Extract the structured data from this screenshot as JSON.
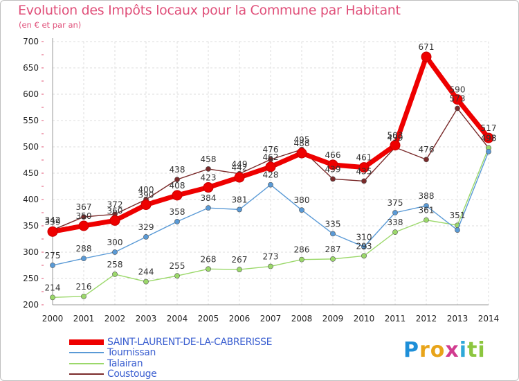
{
  "title": "Evolution des Impôts locaux pour la Commune par Habitant",
  "subtitle": "(en € et par an)",
  "logo": {
    "text": "Proxiti",
    "letters": [
      "P",
      "r",
      "o",
      "x",
      "i",
      "t",
      "i"
    ],
    "colors": [
      "#1e8fd8",
      "#e8a419",
      "#e8a419",
      "#d13b8f",
      "#2ea8d8",
      "#8cc63f",
      "#8cc63f"
    ]
  },
  "chart_data": {
    "type": "line",
    "x": [
      2000,
      2001,
      2002,
      2003,
      2004,
      2005,
      2006,
      2007,
      2008,
      2009,
      2010,
      2011,
      2012,
      2013,
      2014
    ],
    "ylim": [
      200,
      700
    ],
    "yticks": [
      200,
      250,
      300,
      350,
      400,
      450,
      500,
      550,
      600,
      650,
      700
    ],
    "grid": true,
    "legend_position": "bottom-left",
    "series": [
      {
        "name": "Coustouge",
        "color": "#7a2a2a",
        "values": [
          342,
          367,
          372,
          400,
          438,
          458,
          449,
          476,
          495,
          439,
          435,
          499,
          476,
          573,
          498
        ],
        "labels": [
          "342",
          "367",
          "372",
          "400",
          "438",
          "458",
          "449",
          "476",
          "495",
          "439",
          "435",
          "499",
          "476",
          "573",
          "498"
        ]
      },
      {
        "name": "Talairan",
        "color": "#9bd86a",
        "values": [
          214,
          216,
          258,
          244,
          255,
          268,
          267,
          273,
          286,
          287,
          293,
          338,
          361,
          351,
          498
        ],
        "labels": [
          "214",
          "216",
          "258",
          "244",
          "255",
          "268",
          "267",
          "273",
          "286",
          "287",
          "293",
          "338",
          "361",
          "351",
          "498"
        ]
      },
      {
        "name": "Tournissan",
        "color": "#5a9ad6",
        "values": [
          275,
          288,
          300,
          329,
          358,
          384,
          381,
          428,
          380,
          335,
          310,
          375,
          388,
          342,
          491
        ],
        "labels": [
          "275",
          "288",
          "300",
          "329",
          "358",
          "384",
          "381",
          "428",
          "380",
          "335",
          "310",
          "375",
          "388",
          "",
          ""
        ]
      },
      {
        "name": "SAINT-LAURENT-DE-LA-CABRERISSE",
        "color": "#ee0000",
        "values": [
          339,
          350,
          360,
          390,
          408,
          423,
          442,
          462,
          488,
          466,
          461,
          503,
          671,
          590,
          517
        ],
        "labels": [
          "339",
          "350",
          "360",
          "390",
          "408",
          "423",
          "442",
          "462",
          "488",
          "466",
          "461",
          "503",
          "671",
          "590",
          "517"
        ]
      }
    ],
    "legend": [
      {
        "name": "SAINT-LAURENT-DE-LA-CABRERISSE",
        "color": "#ee0000",
        "thick": true
      },
      {
        "name": "Tournissan",
        "color": "#5a9ad6",
        "thick": false
      },
      {
        "name": "Talairan",
        "color": "#9bd86a",
        "thick": false
      },
      {
        "name": "Coustouge",
        "color": "#7a2a2a",
        "thick": false
      }
    ]
  }
}
